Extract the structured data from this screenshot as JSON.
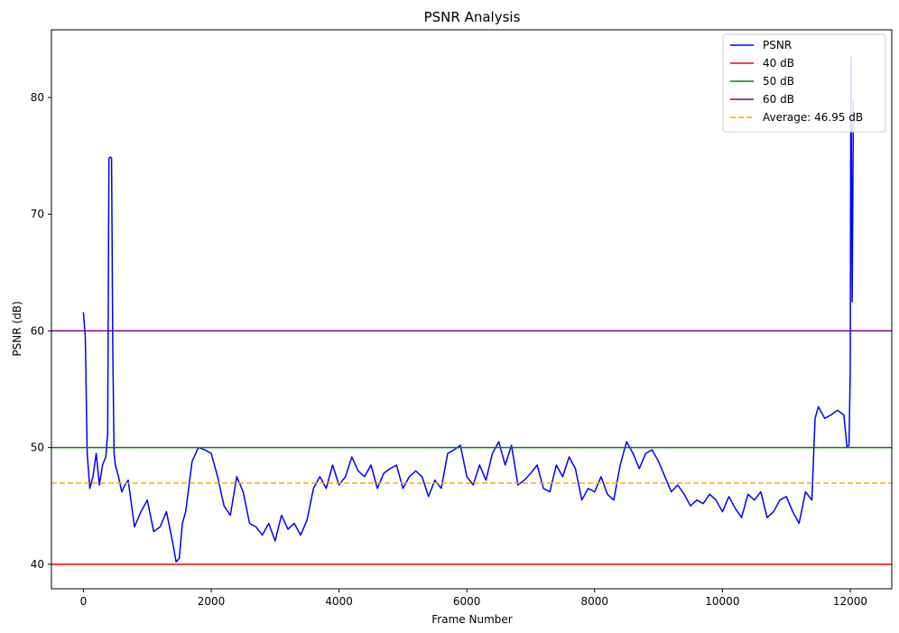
{
  "chart_data": {
    "type": "line",
    "title": "PSNR Analysis",
    "xlabel": "Frame Number",
    "ylabel": "PSNR (dB)",
    "xlim": [
      -500,
      12650
    ],
    "ylim": [
      37.9,
      85.8
    ],
    "xticks": [
      0,
      2000,
      4000,
      6000,
      8000,
      10000,
      12000
    ],
    "yticks": [
      40,
      50,
      60,
      70,
      80
    ],
    "grid": false,
    "legend_position": "top-right",
    "series": [
      {
        "name": "PSNR",
        "color": "#0000ff",
        "style": "solid",
        "x": [
          0,
          30,
          60,
          100,
          150,
          200,
          250,
          300,
          350,
          380,
          400,
          420,
          440,
          460,
          480,
          500,
          550,
          600,
          650,
          700,
          800,
          900,
          1000,
          1100,
          1200,
          1300,
          1400,
          1450,
          1500,
          1550,
          1600,
          1700,
          1800,
          1900,
          2000,
          2100,
          2200,
          2300,
          2400,
          2500,
          2600,
          2700,
          2800,
          2900,
          3000,
          3100,
          3200,
          3300,
          3400,
          3500,
          3600,
          3700,
          3800,
          3900,
          4000,
          4100,
          4200,
          4300,
          4400,
          4500,
          4600,
          4700,
          4800,
          4900,
          5000,
          5100,
          5200,
          5300,
          5400,
          5500,
          5600,
          5700,
          5800,
          5900,
          6000,
          6100,
          6200,
          6300,
          6400,
          6500,
          6600,
          6700,
          6800,
          6900,
          7000,
          7100,
          7200,
          7300,
          7400,
          7500,
          7600,
          7700,
          7800,
          7900,
          8000,
          8100,
          8200,
          8300,
          8400,
          8500,
          8600,
          8700,
          8800,
          8900,
          9000,
          9100,
          9200,
          9300,
          9400,
          9500,
          9600,
          9700,
          9800,
          9900,
          10000,
          10100,
          10200,
          10300,
          10400,
          10500,
          10600,
          10700,
          10800,
          10900,
          11000,
          11100,
          11200,
          11300,
          11400,
          11450,
          11500,
          11600,
          11700,
          11800,
          11900,
          11950,
          11980,
          12000,
          12010,
          12030,
          12050
        ],
        "y": [
          61.6,
          59.5,
          49.5,
          46.5,
          47.5,
          49.5,
          46.8,
          48.5,
          49.2,
          51.2,
          74.8,
          74.9,
          74.8,
          58.0,
          49.5,
          48.5,
          47.5,
          46.2,
          46.8,
          47.2,
          43.2,
          44.5,
          45.5,
          42.8,
          43.2,
          44.5,
          41.8,
          40.2,
          40.5,
          43.5,
          44.5,
          48.8,
          50.0,
          49.8,
          49.5,
          47.5,
          45.0,
          44.2,
          47.5,
          46.2,
          43.5,
          43.2,
          42.5,
          43.5,
          42.0,
          44.2,
          43.0,
          43.5,
          42.5,
          43.8,
          46.5,
          47.5,
          46.5,
          48.5,
          46.8,
          47.5,
          49.2,
          48.0,
          47.5,
          48.5,
          46.5,
          47.8,
          48.2,
          48.5,
          46.5,
          47.5,
          48.0,
          47.5,
          45.8,
          47.2,
          46.5,
          49.5,
          49.8,
          50.2,
          47.5,
          46.8,
          48.5,
          47.2,
          49.5,
          50.5,
          48.5,
          50.2,
          46.8,
          47.2,
          47.8,
          48.5,
          46.5,
          46.2,
          48.5,
          47.5,
          49.2,
          48.2,
          45.5,
          46.5,
          46.2,
          47.5,
          46.0,
          45.5,
          48.5,
          50.5,
          49.5,
          48.2,
          49.5,
          49.8,
          48.8,
          47.5,
          46.2,
          46.8,
          46.0,
          45.0,
          45.5,
          45.2,
          46.0,
          45.5,
          44.5,
          45.8,
          44.8,
          44.0,
          46.0,
          45.5,
          46.2,
          44.0,
          44.5,
          45.5,
          45.8,
          44.5,
          43.5,
          46.2,
          45.5,
          52.5,
          53.5,
          52.5,
          52.8,
          53.2,
          52.8,
          50.0,
          50.2,
          56.5,
          83.5,
          62.5,
          79.8
        ]
      }
    ],
    "reference_lines": [
      {
        "name": "40 dB",
        "y": 40,
        "color": "#ff0000",
        "style": "solid"
      },
      {
        "name": "50 dB",
        "y": 50,
        "color": "#008000",
        "style": "solid"
      },
      {
        "name": "60 dB",
        "y": 60,
        "color": "#800080",
        "style": "solid"
      },
      {
        "name": "Average: 46.95 dB",
        "y": 46.95,
        "color": "#ffa500",
        "style": "dashed"
      }
    ]
  }
}
